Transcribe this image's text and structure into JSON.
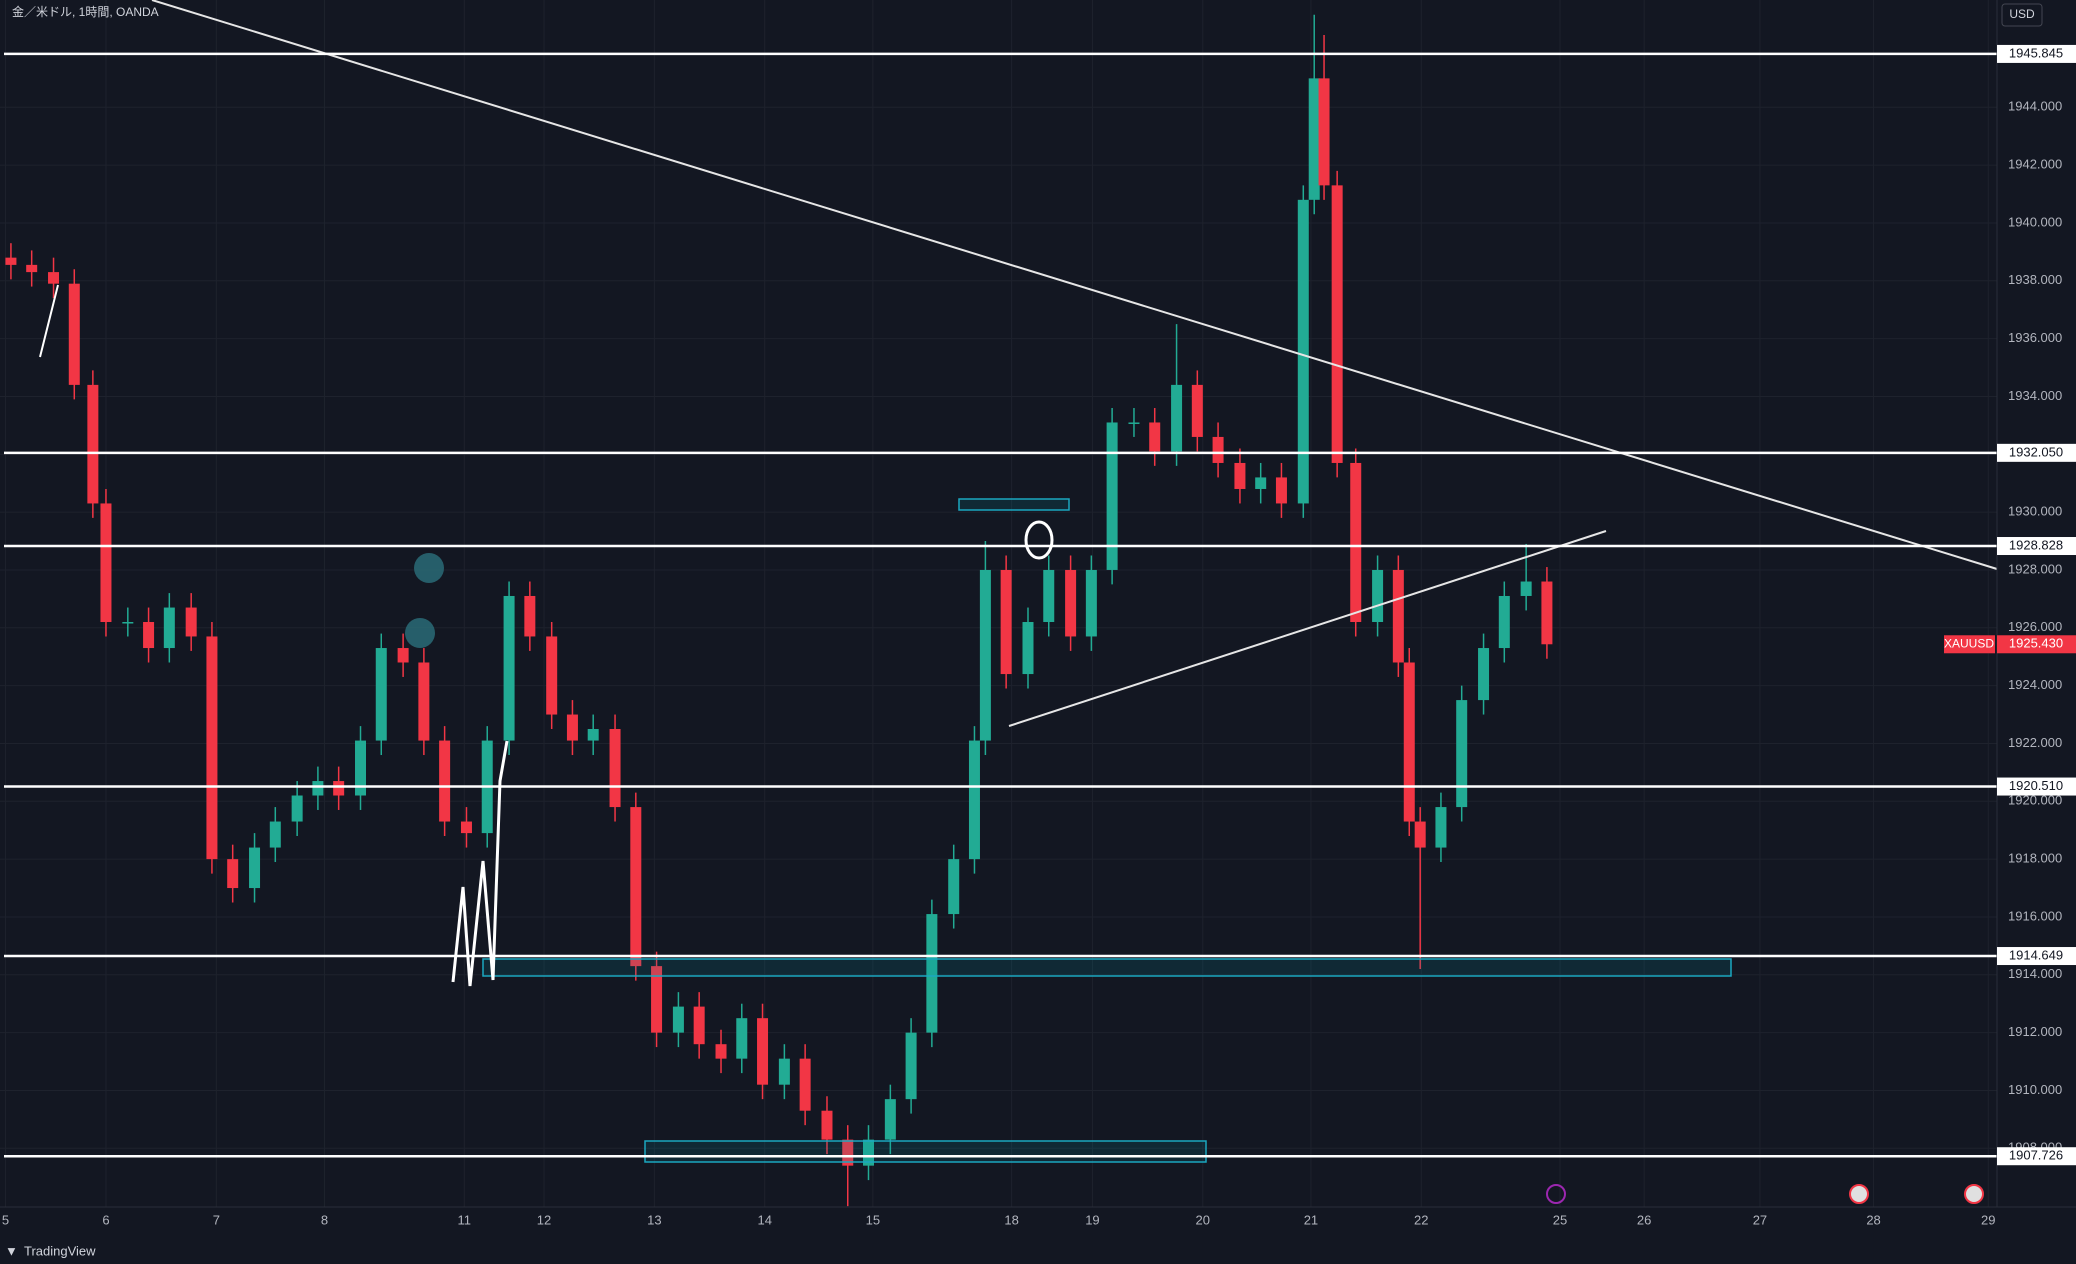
{
  "chart_data": {
    "type": "candlestick",
    "title": "金／米ドル, 1時間, OANDA",
    "currency": "USD",
    "up_color": "#22ab94",
    "down_color": "#f23645",
    "grid": true,
    "x": [
      0.05,
      0.24,
      0.44,
      0.63,
      0.8,
      0.92,
      1.12,
      1.31,
      1.5,
      1.7,
      1.89,
      2.08,
      2.28,
      2.47,
      2.67,
      2.86,
      3.05,
      3.25,
      3.44,
      3.64,
      3.83,
      4.02,
      4.22,
      4.41,
      4.61,
      4.8,
      5.0,
      5.19,
      5.38,
      5.58,
      5.77,
      5.96,
      6.16,
      6.35,
      6.55,
      6.74,
      6.93,
      7.13,
      7.32,
      7.52,
      7.71,
      7.9,
      8.1,
      8.29,
      8.48,
      8.68,
      8.87,
      8.97,
      9.16,
      9.36,
      9.55,
      9.75,
      9.94,
      10.13,
      10.33,
      10.52,
      10.72,
      10.91,
      11.1,
      11.3,
      11.49,
      11.68,
      11.88,
      11.98,
      12.07,
      12.19,
      12.36,
      12.56,
      12.75,
      12.85,
      12.95,
      13.14,
      13.33,
      13.53,
      13.72,
      13.92,
      14.11
    ],
    "open": [
      1938.8,
      1938.55,
      1938.3,
      1937.9,
      1934.4,
      1930.3,
      1926.2,
      1926.2,
      1925.3,
      1926.7,
      1925.7,
      1918.0,
      1917.0,
      1918.4,
      1919.3,
      1920.2,
      1920.7,
      1920.2,
      1922.1,
      1925.3,
      1924.8,
      1922.1,
      1919.3,
      1918.9,
      1922.1,
      1927.1,
      1925.7,
      1923.0,
      1922.1,
      1922.5,
      1919.8,
      1914.3,
      1912.0,
      1912.9,
      1911.6,
      1911.1,
      1912.5,
      1910.2,
      1911.1,
      1909.3,
      1908.3,
      1907.4,
      1908.3,
      1909.7,
      1912.0,
      1916.1,
      1918.0,
      1922.1,
      1928.0,
      1924.4,
      1926.2,
      1928.0,
      1925.7,
      1928.0,
      1933.1,
      1933.1,
      1932.1,
      1934.4,
      1932.6,
      1931.7,
      1930.8,
      1931.2,
      1930.3,
      1940.8,
      1945.0,
      1941.3,
      1931.7,
      1926.2,
      1928.0,
      1924.8,
      1919.3,
      1918.4,
      1919.8,
      1923.5,
      1925.3,
      1927.1,
      1927.6
    ],
    "high": [
      1939.3,
      1939.05,
      1938.8,
      1938.4,
      1934.9,
      1930.8,
      1926.7,
      1926.7,
      1927.2,
      1927.2,
      1926.2,
      1918.5,
      1918.9,
      1919.8,
      1920.7,
      1921.2,
      1921.2,
      1922.6,
      1925.8,
      1925.8,
      1925.3,
      1922.6,
      1919.8,
      1922.6,
      1927.6,
      1927.6,
      1926.2,
      1923.5,
      1923.0,
      1923.0,
      1920.3,
      1914.8,
      1913.4,
      1913.4,
      1912.1,
      1913.0,
      1913.0,
      1911.6,
      1911.6,
      1909.8,
      1908.8,
      1908.8,
      1910.2,
      1912.5,
      1916.6,
      1918.5,
      1922.6,
      1929.0,
      1928.5,
      1926.7,
      1928.5,
      1928.5,
      1928.5,
      1933.6,
      1933.6,
      1933.6,
      1936.5,
      1934.9,
      1933.1,
      1932.2,
      1931.7,
      1931.7,
      1941.3,
      1947.2,
      1946.5,
      1941.8,
      1932.2,
      1928.5,
      1928.5,
      1925.3,
      1919.8,
      1920.3,
      1924.0,
      1925.8,
      1927.6,
      1928.9,
      1928.1
    ],
    "low": [
      1938.05,
      1937.8,
      1937.4,
      1933.9,
      1929.8,
      1925.7,
      1925.7,
      1924.8,
      1924.8,
      1925.2,
      1917.5,
      1916.5,
      1916.5,
      1917.9,
      1918.8,
      1919.7,
      1919.7,
      1919.7,
      1921.6,
      1924.3,
      1921.6,
      1918.8,
      1918.4,
      1918.4,
      1921.6,
      1925.2,
      1922.5,
      1921.6,
      1921.6,
      1919.3,
      1913.8,
      1911.5,
      1911.5,
      1911.1,
      1910.6,
      1910.6,
      1909.7,
      1909.7,
      1908.8,
      1907.8,
      1906.0,
      1906.9,
      1907.8,
      1909.2,
      1911.5,
      1915.6,
      1917.5,
      1921.6,
      1923.9,
      1923.9,
      1925.7,
      1925.2,
      1925.2,
      1927.5,
      1932.6,
      1931.6,
      1931.6,
      1932.1,
      1931.2,
      1930.3,
      1930.3,
      1929.8,
      1929.8,
      1940.3,
      1940.8,
      1931.2,
      1925.7,
      1925.7,
      1924.3,
      1918.8,
      1914.2,
      1917.9,
      1919.3,
      1923.0,
      1924.8,
      1926.6,
      1924.93
    ],
    "close": [
      1938.55,
      1938.3,
      1937.9,
      1934.4,
      1930.3,
      1926.2,
      1926.2,
      1925.3,
      1926.7,
      1925.7,
      1918.0,
      1917.0,
      1918.4,
      1919.3,
      1920.2,
      1920.7,
      1920.2,
      1922.1,
      1925.3,
      1924.8,
      1922.1,
      1919.3,
      1918.9,
      1922.1,
      1927.1,
      1925.7,
      1923.0,
      1922.1,
      1922.5,
      1919.8,
      1914.3,
      1912.0,
      1912.9,
      1911.6,
      1911.1,
      1912.5,
      1910.2,
      1911.1,
      1909.3,
      1908.3,
      1907.4,
      1908.3,
      1909.7,
      1912.0,
      1916.1,
      1918.0,
      1922.1,
      1928.0,
      1924.4,
      1926.2,
      1928.0,
      1925.7,
      1928.0,
      1933.1,
      1933.1,
      1932.1,
      1934.4,
      1932.6,
      1931.7,
      1930.8,
      1931.2,
      1930.3,
      1940.8,
      1945.0,
      1941.3,
      1931.7,
      1926.2,
      1928.0,
      1924.8,
      1919.3,
      1918.4,
      1919.8,
      1923.5,
      1925.3,
      1927.1,
      1927.6,
      1925.43
    ],
    "xlim": [
      -0.05,
      18.23
    ],
    "xticks": [
      {
        "value": 0,
        "label": "5"
      },
      {
        "value": 0.92,
        "label": "6"
      },
      {
        "value": 1.93,
        "label": "7"
      },
      {
        "value": 2.92,
        "label": "8"
      },
      {
        "value": 4.2,
        "label": "11"
      },
      {
        "value": 4.93,
        "label": "12"
      },
      {
        "value": 5.94,
        "label": "13"
      },
      {
        "value": 6.95,
        "label": "14"
      },
      {
        "value": 7.94,
        "label": "15"
      },
      {
        "value": 9.21,
        "label": "18"
      },
      {
        "value": 9.95,
        "label": "19"
      },
      {
        "value": 10.96,
        "label": "20"
      },
      {
        "value": 11.95,
        "label": "21"
      },
      {
        "value": 12.96,
        "label": "22"
      },
      {
        "value": 14.23,
        "label": "25"
      },
      {
        "value": 15.0,
        "label": "26"
      },
      {
        "value": 16.06,
        "label": "27"
      },
      {
        "value": 17.1,
        "label": "28"
      },
      {
        "value": 18.15,
        "label": "29"
      }
    ],
    "ylim": [
      1905.97,
      1947.71
    ],
    "yticks": [
      {
        "value": 1908,
        "label": "1908.000"
      },
      {
        "value": 1910,
        "label": "1910.000"
      },
      {
        "value": 1912,
        "label": "1912.000"
      },
      {
        "value": 1914,
        "label": "1914.000"
      },
      {
        "value": 1916,
        "label": "1916.000"
      },
      {
        "value": 1918,
        "label": "1918.000"
      },
      {
        "value": 1920,
        "label": "1920.000"
      },
      {
        "value": 1922,
        "label": "1922.000"
      },
      {
        "value": 1924,
        "label": "1924.000"
      },
      {
        "value": 1926,
        "label": "1926.000"
      },
      {
        "value": 1928,
        "label": "1928.000"
      },
      {
        "value": 1930,
        "label": "1930.000"
      },
      {
        "value": 1932,
        "label": "1932.000"
      },
      {
        "value": 1934,
        "label": "1934.000"
      },
      {
        "value": 1936,
        "label": "1936.000"
      },
      {
        "value": 1938,
        "label": "1938.000"
      },
      {
        "value": 1940,
        "label": "1940.000"
      },
      {
        "value": 1942,
        "label": "1942.000"
      },
      {
        "value": 1944,
        "label": "1944.000"
      }
    ],
    "levels": [
      1945.845,
      {
        "value": 1932.05,
        "label": "1932.050"
      },
      1928.828,
      {
        "value": 1920.51,
        "label": "1920.510"
      },
      1914.649,
      1907.726
    ],
    "last_price": {
      "symbol": "XAUUSD",
      "value": 1925.43,
      "label": "1925.430"
    }
  },
  "branding": {
    "name": "TradingView"
  }
}
